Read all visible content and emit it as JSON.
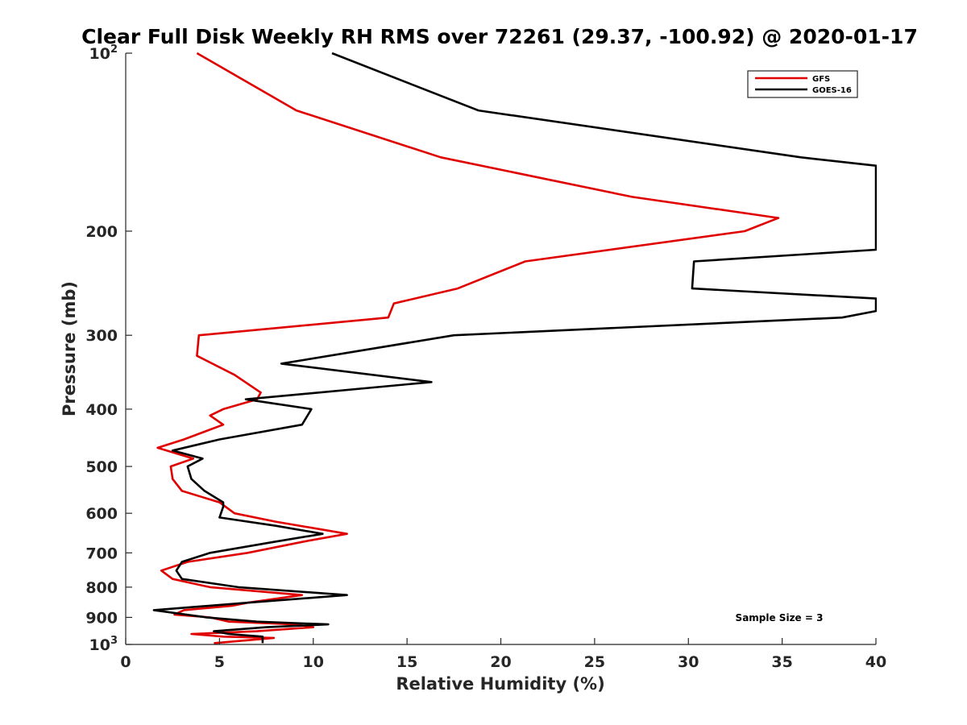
{
  "chart_data": {
    "type": "line",
    "title": "Clear Full Disk Weekly RH RMS over 72261 (29.37, -100.92) @ 2020-01-17",
    "xlabel": "Relative Humidity (%)",
    "ylabel": "Pressure (mb)",
    "xlim": [
      0,
      40
    ],
    "ylim": [
      100,
      1000
    ],
    "y_scale": "log",
    "y_reversed": true,
    "grid": false,
    "legend_position": "top-right",
    "x_ticks": [
      "0",
      "5",
      "10",
      "15",
      "20",
      "25",
      "30",
      "35",
      "40"
    ],
    "y_ticks": [
      {
        "value": 100,
        "base": "10",
        "exp": "2"
      },
      {
        "value": 200,
        "label": "200"
      },
      {
        "value": 300,
        "label": "300"
      },
      {
        "value": 400,
        "label": "400"
      },
      {
        "value": 500,
        "label": "500"
      },
      {
        "value": 600,
        "label": "600"
      },
      {
        "value": 700,
        "label": "700"
      },
      {
        "value": 800,
        "label": "800"
      },
      {
        "value": 900,
        "label": "900"
      },
      {
        "value": 1000,
        "base": "10",
        "exp": "3"
      }
    ],
    "annotation": "Sample Size = 3",
    "series": [
      {
        "name": "GFS",
        "color": "#e00000",
        "points": [
          [
            3.8,
            100
          ],
          [
            9.1,
            125
          ],
          [
            16.8,
            150
          ],
          [
            27.0,
            175
          ],
          [
            34.8,
            190
          ],
          [
            33.0,
            200
          ],
          [
            21.3,
            225
          ],
          [
            17.7,
            250
          ],
          [
            14.3,
            265
          ],
          [
            14.0,
            280
          ],
          [
            3.9,
            300
          ],
          [
            3.8,
            325
          ],
          [
            5.8,
            350
          ],
          [
            7.2,
            375
          ],
          [
            7.0,
            385
          ],
          [
            5.2,
            400
          ],
          [
            4.5,
            410
          ],
          [
            5.2,
            425
          ],
          [
            3.1,
            450
          ],
          [
            1.7,
            465
          ],
          [
            3.6,
            485
          ],
          [
            2.4,
            500
          ],
          [
            2.5,
            525
          ],
          [
            3.0,
            550
          ],
          [
            5.0,
            575
          ],
          [
            5.8,
            600
          ],
          [
            8.0,
            620
          ],
          [
            11.8,
            650
          ],
          [
            9.5,
            670
          ],
          [
            6.5,
            700
          ],
          [
            3.3,
            725
          ],
          [
            1.9,
            750
          ],
          [
            2.5,
            775
          ],
          [
            4.5,
            800
          ],
          [
            9.4,
            825
          ],
          [
            6.5,
            850
          ],
          [
            5.7,
            860
          ],
          [
            3.1,
            875
          ],
          [
            2.6,
            890
          ],
          [
            4.5,
            900
          ],
          [
            5.5,
            915
          ],
          [
            9.0,
            925
          ],
          [
            10.0,
            935
          ],
          [
            7.0,
            950
          ],
          [
            3.5,
            960
          ],
          [
            5.2,
            970
          ],
          [
            7.9,
            975
          ],
          [
            4.7,
            995
          ]
        ]
      },
      {
        "name": "GOES-16",
        "color": "#000000",
        "points": [
          [
            11.0,
            100
          ],
          [
            18.8,
            125
          ],
          [
            36.0,
            150
          ],
          [
            40.0,
            155
          ],
          [
            40,
            215
          ],
          [
            30.3,
            225
          ],
          [
            30.2,
            250
          ],
          [
            40,
            260
          ],
          [
            40,
            273
          ],
          [
            38.2,
            280
          ],
          [
            17.5,
            300
          ],
          [
            8.3,
            335
          ],
          [
            16.3,
            360
          ],
          [
            6.4,
            385
          ],
          [
            9.9,
            400
          ],
          [
            9.4,
            425
          ],
          [
            5.0,
            450
          ],
          [
            2.5,
            470
          ],
          [
            4.1,
            485
          ],
          [
            3.3,
            500
          ],
          [
            3.5,
            525
          ],
          [
            4.2,
            550
          ],
          [
            5.2,
            575
          ],
          [
            5.2,
            585
          ],
          [
            5.0,
            610
          ],
          [
            8.0,
            630
          ],
          [
            10.5,
            650
          ],
          [
            8.0,
            670
          ],
          [
            4.5,
            700
          ],
          [
            3.0,
            725
          ],
          [
            2.7,
            750
          ],
          [
            3.0,
            775
          ],
          [
            6.0,
            800
          ],
          [
            11.8,
            825
          ],
          [
            6.5,
            850
          ],
          [
            1.5,
            875
          ],
          [
            4.3,
            900
          ],
          [
            7.0,
            915
          ],
          [
            10.8,
            925
          ],
          [
            7.5,
            935
          ],
          [
            4.7,
            950
          ],
          [
            5.5,
            960
          ],
          [
            7.3,
            970
          ],
          [
            7.3,
            995
          ]
        ]
      }
    ]
  }
}
